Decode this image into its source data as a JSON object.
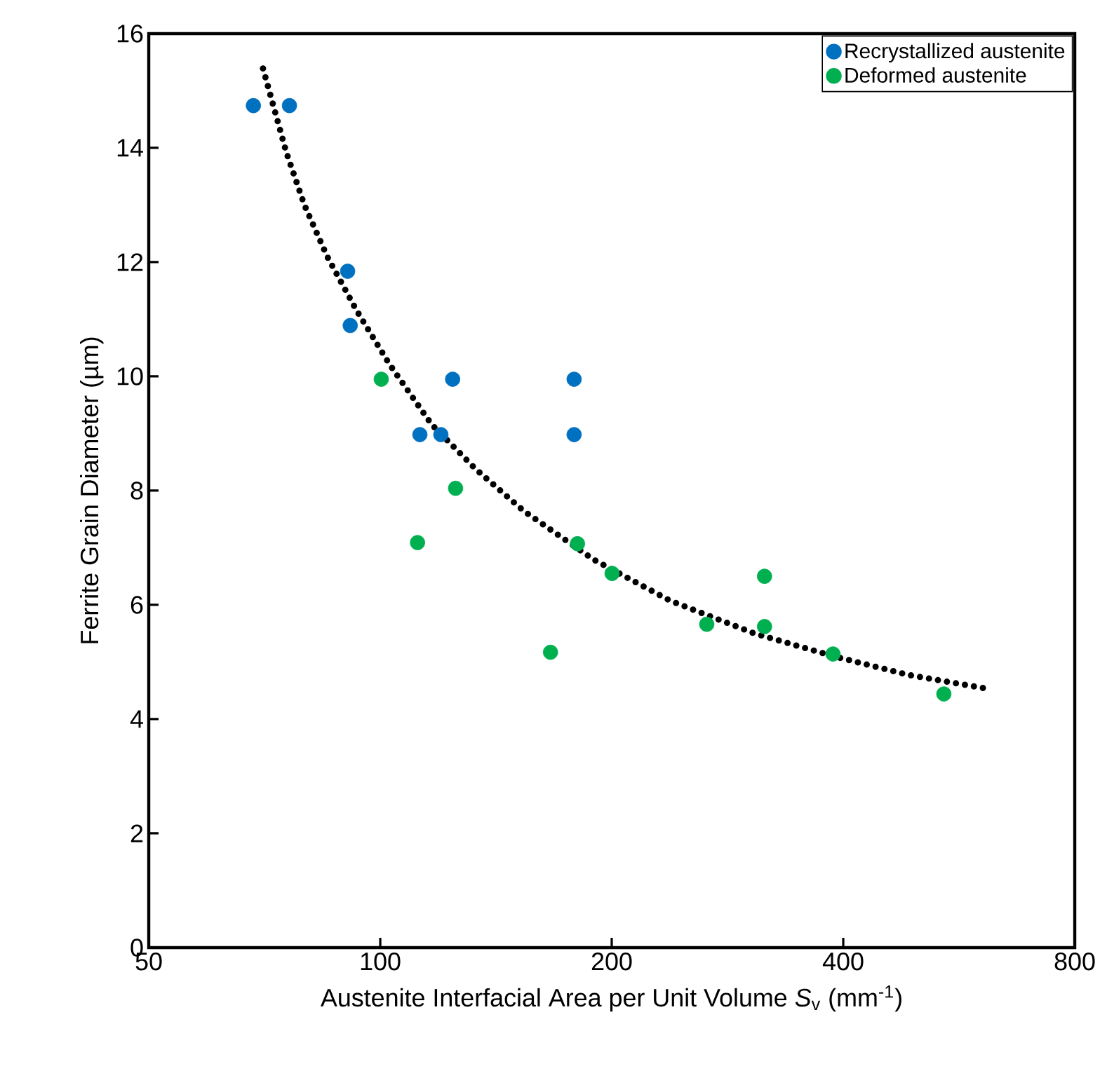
{
  "chart_data": {
    "type": "scatter",
    "xlabel": "Austenite Interfacial Area per Unit Volume *S*$_{v}$ (mm$^{-1}$)",
    "ylabel": "Ferrite Grain Diameter (µm)",
    "log": "x",
    "grid": false,
    "legend": "top right",
    "marker": "circle",
    "xlim": [
      50,
      800
    ],
    "xticks": [
      50,
      100,
      200,
      400,
      800
    ],
    "ylim": [
      0,
      16
    ],
    "yticks": [
      0,
      2,
      4,
      6,
      8,
      10,
      12,
      14,
      16
    ],
    "series": [
      {
        "name": "Recrystallized austenite",
        "color": "#0070c0",
        "x": [
          68.4,
          76.2,
          90.7,
          91.4,
          124.2,
          112.6,
          119.9,
          178.7,
          178.7
        ],
        "values": [
          14.74,
          14.74,
          11.84,
          10.89,
          9.95,
          8.98,
          8.98,
          9.95,
          8.98
        ]
      },
      {
        "name": "Deformed austenite",
        "color": "#00b050",
        "x": [
          100.3,
          125.3,
          111.8,
          180.5,
          166.5,
          200.2,
          265.8,
          316,
          316,
          388,
          540.6
        ],
        "values": [
          9.95,
          8.04,
          7.09,
          7.07,
          5.17,
          6.55,
          5.66,
          6.5,
          5.62,
          5.14,
          4.44
        ]
      },
      {
        "type": "line",
        "line_style": "dotted",
        "marker": "none",
        "color": "#000000",
        "x": [
          70.4,
          75.5,
          79.7,
          85.3,
          93.1,
          102.7,
          116.6,
          133,
          153.8,
          189.6,
          238.4,
          306.6,
          388.6,
          487.6,
          610.7
        ],
        "values": [
          15.39,
          13.92,
          13.0,
          12.1,
          11.16,
          10.22,
          9.16,
          8.38,
          7.64,
          6.79,
          6.07,
          5.5,
          5.1,
          4.77,
          4.54
        ]
      }
    ]
  }
}
